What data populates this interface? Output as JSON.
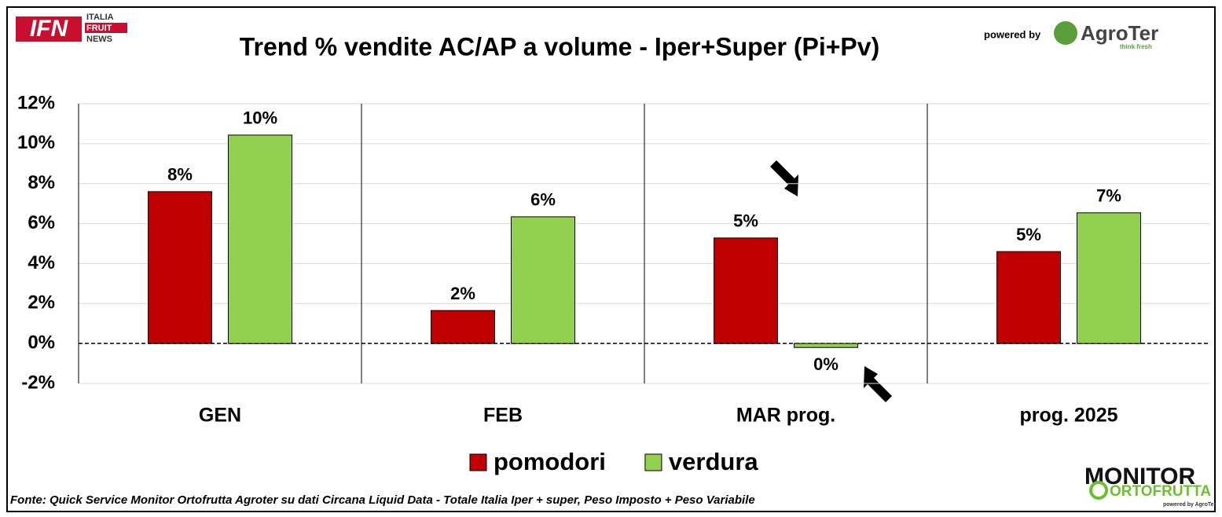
{
  "chart_data": {
    "type": "bar",
    "title": "Trend % vendite AC/AP a volume -  Iper+Super (Pi+Pv)",
    "categories": [
      "GEN",
      "FEB",
      "MAR prog.",
      "prog. 2025"
    ],
    "series": [
      {
        "name": "pomodori",
        "color": "#c00000",
        "values": [
          7.6,
          1.65,
          5.28,
          4.6
        ],
        "value_labels": [
          "8%",
          "2%",
          "5%",
          "5%"
        ]
      },
      {
        "name": "verdura",
        "color": "#92d050",
        "values": [
          10.43,
          6.34,
          -0.2,
          6.54
        ],
        "value_labels": [
          "10%",
          "6%",
          "0%",
          "7%"
        ]
      }
    ],
    "ylim": [
      -2,
      12
    ],
    "yticks": [
      {
        "value": -2,
        "label": "-2%"
      },
      {
        "value": 0,
        "label": "0%"
      },
      {
        "value": 2,
        "label": "2%"
      },
      {
        "value": 4,
        "label": "4%"
      },
      {
        "value": 6,
        "label": "6%"
      },
      {
        "value": 8,
        "label": "8%"
      },
      {
        "value": 10,
        "label": "10%"
      },
      {
        "value": 12,
        "label": "12%"
      }
    ],
    "grid": true,
    "legend": "bottom",
    "source": "Fonte: Quick Service Monitor Ortofrutta Agroter su dati Circana Liquid Data - Totale Italia Iper + super, Peso Imposto + Peso Variabile"
  },
  "logos": {
    "ifn": "IFN",
    "ifn_lines": [
      "ITALIA",
      "FRUIT",
      "NEWS"
    ],
    "powered_by": "powered by",
    "agroter": "AgroTer",
    "agroter_tagline": "think fresh",
    "monitor": "MONITOR",
    "ortofrutta": "ORTOFRUTTA",
    "monitor_powered": "powered by AgroTer"
  }
}
